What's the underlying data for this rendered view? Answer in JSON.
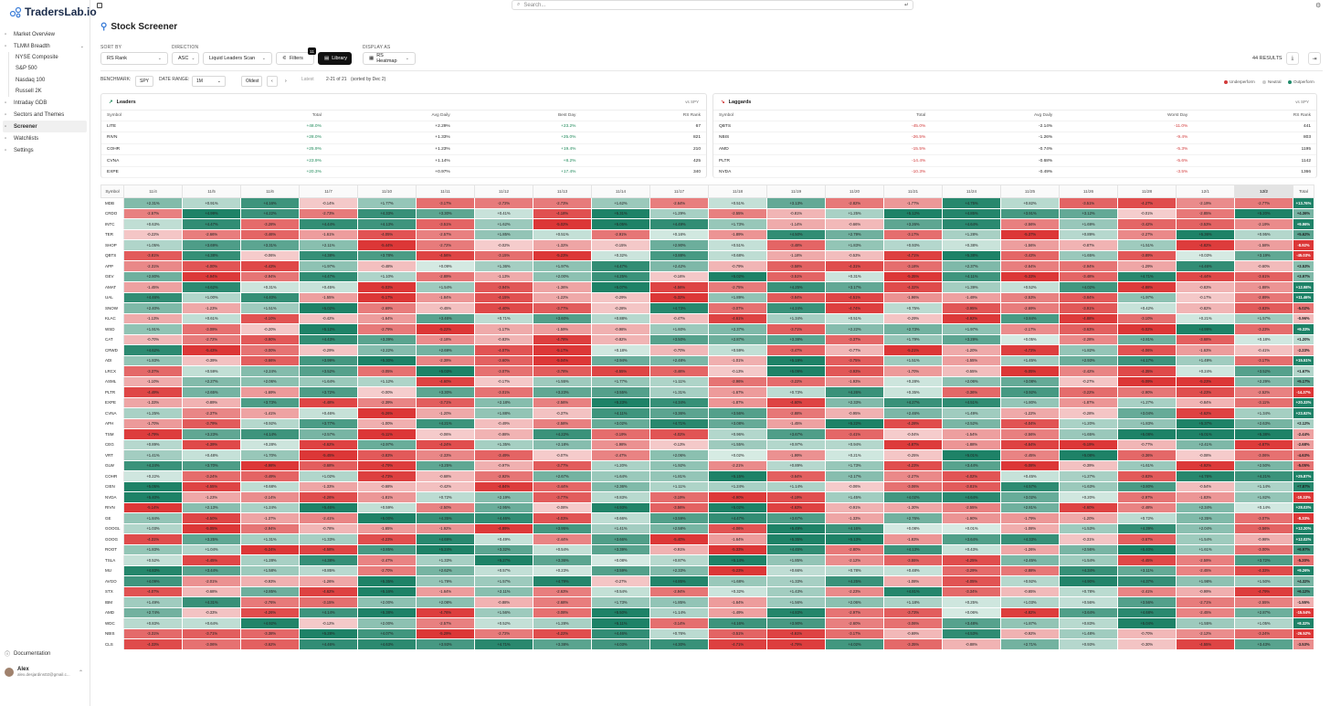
{
  "app": {
    "brand": "TradersLab.io"
  },
  "sidebar": {
    "items": [
      {
        "label": "Market Overview",
        "icon": "home-icon"
      },
      {
        "label": "TLMM Breadth",
        "icon": "chart-icon",
        "expandable": true
      },
      {
        "label": "NYSE Composite",
        "sub": true
      },
      {
        "label": "S&P 500",
        "sub": true
      },
      {
        "label": "Nasdaq 100",
        "sub": true
      },
      {
        "label": "Russell 2K",
        "sub": true
      },
      {
        "label": "Intraday GDB",
        "icon": "grid-icon"
      },
      {
        "label": "Sectors and Themes",
        "icon": "layers-icon"
      },
      {
        "label": "Screener",
        "icon": "screener-icon",
        "active": true
      },
      {
        "label": "Watchlists",
        "icon": "list-icon"
      },
      {
        "label": "Settings",
        "icon": "gear-icon"
      }
    ],
    "documentation": "Documentation",
    "user": {
      "name": "Alex",
      "email": "alex.desjardins02@gmail.c..."
    }
  },
  "search": {
    "placeholder": "Search..."
  },
  "page": {
    "title": "Stock Screener"
  },
  "controls": {
    "sort_label": "SORT BY",
    "sort_value": "RS Rank",
    "direction_label": "DIRECTION",
    "direction_value": "ASC",
    "scan_value": "Liquid Leaders Scan",
    "filters": "Filters",
    "filters_badge": "11",
    "library": "Library",
    "display_label": "DISPLAY AS",
    "display_value": "RS Heatmap",
    "results": "44 RESULTS"
  },
  "bench": {
    "benchmark_label": "BENCHMARK:",
    "benchmark_value": "SPY",
    "range_label": "DATE RANGE:",
    "range_value": "1M",
    "oldest": "Oldest",
    "latest": "Latest",
    "window": "2-21 of 21",
    "sorted": "(sorted by Dec 2)",
    "legend": [
      "Underperform",
      "Neutral",
      "Outperform"
    ]
  },
  "leaders": {
    "title": "Leaders",
    "vs": "vs SPY",
    "cols": [
      "Symbol",
      "Total",
      "Avg Daily",
      "Best Day",
      "RS Rank"
    ],
    "rows": [
      [
        "LITE",
        "+48.0%",
        "+2.29%",
        "+23.2%",
        "67"
      ],
      [
        "RIVN",
        "+28.0%",
        "+1.33%",
        "+25.0%",
        "821"
      ],
      [
        "COHR",
        "+25.9%",
        "+1.23%",
        "+19.4%",
        "210"
      ],
      [
        "CVNA",
        "+23.9%",
        "+1.14%",
        "+8.2%",
        "425"
      ],
      [
        "EXPE",
        "+20.3%",
        "+0.97%",
        "+17.4%",
        "340"
      ]
    ]
  },
  "laggards": {
    "title": "Laggards",
    "vs": "vs SPY",
    "cols": [
      "Symbol",
      "Total",
      "Avg Daily",
      "Worst Day",
      "RS Rank"
    ],
    "rows": [
      [
        "QBTS",
        "-45.0%",
        "-2.14%",
        "-11.0%",
        "441"
      ],
      [
        "NBIS",
        "-26.5%",
        "-1.26%",
        "-9.4%",
        "803"
      ],
      [
        "AMD",
        "-15.5%",
        "-0.74%",
        "-5.3%",
        "1195"
      ],
      [
        "PLTR",
        "-14.4%",
        "-0.68%",
        "-5.6%",
        "1142"
      ],
      [
        "NVDA",
        "-10.3%",
        "-0.49%",
        "-3.5%",
        "1366"
      ]
    ]
  },
  "heatmap": {
    "symbol_header": "Symbol",
    "total_header": "Total",
    "dates": [
      "11/4",
      "11/5",
      "11/6",
      "11/7",
      "11/10",
      "11/11",
      "11/12",
      "11/13",
      "11/14",
      "11/17",
      "11/18",
      "11/19",
      "11/20",
      "11/21",
      "11/24",
      "11/25",
      "11/26",
      "11/28",
      "12/1",
      "12/2"
    ],
    "symbols": [
      "MDB",
      "CRDO",
      "INTC",
      "TER",
      "SHOP",
      "QBTS",
      "APP",
      "GEV",
      "AMAT",
      "UAL",
      "SNOW",
      "KLAC",
      "WSD",
      "CAT",
      "CRWD",
      "ADI",
      "LRCX",
      "ASML",
      "PLTR",
      "EXPE",
      "CVNA",
      "APH",
      "TSM",
      "CEG",
      "VRT",
      "GLW",
      "COHR",
      "CIEN",
      "NVDA",
      "RIVN",
      "GE",
      "GOOGL",
      "GOOG",
      "ROOT",
      "TSLA",
      "MU",
      "AVGO",
      "STX",
      "IBM",
      "AMD",
      "WDC",
      "NBIS",
      "CLS"
    ],
    "totals": [
      "+13.76%",
      "+4.36%",
      "+9.96%",
      "+5.62%",
      "-8.92%",
      "-45.03%",
      "+3.53%",
      "+3.97%",
      "+12.98%",
      "+11.46%",
      "-5.02%",
      "-0.96%",
      "+9.33%",
      "+1.20%",
      "-2.23%",
      "+15.51%",
      "+1.67%",
      "+5.17%",
      "-14.37%",
      "+20.33%",
      "+23.92%",
      "+2.12%",
      "-2.44%",
      "-2.68%",
      "-4.63%",
      "-5.05%",
      "+25.87%",
      "+7.87%",
      "-10.33%",
      "+28.03%",
      "-8.33%",
      "+12.20%",
      "+12.02%",
      "+6.97%",
      "-5.20%",
      "+9.26%",
      "+4.32%",
      "+6.12%",
      "-1.55%",
      "-15.54%",
      "+8.32%",
      "-26.52%",
      "-3.53%"
    ]
  }
}
